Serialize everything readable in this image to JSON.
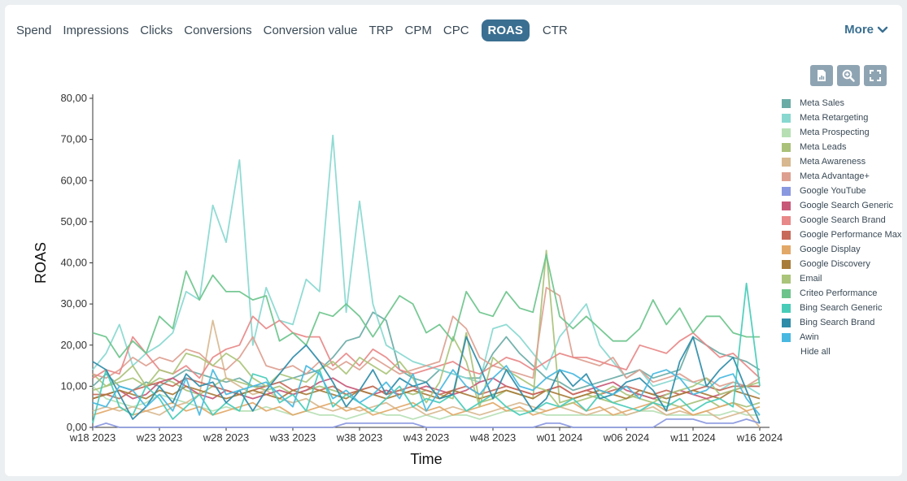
{
  "tabs": [
    {
      "label": "Spend",
      "active": false
    },
    {
      "label": "Impressions",
      "active": false
    },
    {
      "label": "Clicks",
      "active": false
    },
    {
      "label": "Conversions",
      "active": false
    },
    {
      "label": "Conversion value",
      "active": false
    },
    {
      "label": "TRP",
      "active": false
    },
    {
      "label": "CPM",
      "active": false
    },
    {
      "label": "CPC",
      "active": false
    },
    {
      "label": "ROAS",
      "active": true
    },
    {
      "label": "CTR",
      "active": false
    }
  ],
  "more_label": "More",
  "toolbar": {
    "icons": [
      "file-chart-icon",
      "zoom-icon",
      "fullscreen-icon"
    ]
  },
  "legend": {
    "hide_all_label": "Hide all"
  },
  "chart_data": {
    "type": "line",
    "xlabel": "Time",
    "ylabel": "ROAS",
    "ylim": [
      0,
      80
    ],
    "y_ticks": [
      "0,00",
      "10,00",
      "20,00",
      "30,00",
      "40,00",
      "50,00",
      "60,00",
      "70,00",
      "80,00"
    ],
    "x_tick_labels": [
      "w18 2023",
      "w23 2023",
      "w28 2023",
      "w33 2023",
      "w38 2023",
      "w43 2023",
      "w48 2023",
      "w01 2024",
      "w06 2024",
      "w11 2024",
      "w16 2024"
    ],
    "x_tick_positions": [
      0,
      5,
      10,
      15,
      20,
      25,
      30,
      35,
      40,
      45,
      50
    ],
    "legend_position": "right",
    "series": [
      {
        "name": "Meta Sales",
        "color": "#6aaba6",
        "values": [
          10,
          13,
          10,
          9,
          11,
          10,
          12,
          14,
          13,
          12,
          11,
          12,
          10,
          10,
          11,
          12,
          13,
          14,
          17,
          21,
          22,
          28,
          26,
          14,
          12,
          11,
          14,
          13,
          12,
          12,
          18,
          22,
          18,
          15,
          12,
          11,
          9,
          10,
          11,
          12,
          13,
          14,
          12,
          13,
          14,
          22,
          20,
          18,
          17,
          16,
          14
        ]
      },
      {
        "name": "Meta Retargeting",
        "color": "#88d8d0",
        "values": [
          14,
          18,
          25,
          15,
          18,
          20,
          23,
          33,
          31,
          54,
          45,
          65,
          20,
          34,
          26,
          25,
          36,
          33,
          71,
          28,
          55,
          30,
          20,
          18,
          16,
          15,
          14,
          13,
          12,
          11,
          24,
          25,
          22,
          18,
          14,
          22,
          26,
          30,
          20,
          16,
          12,
          14,
          10,
          11,
          12,
          11,
          10,
          9,
          11,
          10,
          8
        ]
      },
      {
        "name": "Meta Prospecting",
        "color": "#b6e0b4",
        "values": [
          10,
          7,
          6,
          5,
          6,
          8,
          7,
          6,
          5,
          4,
          5,
          4,
          4,
          5,
          4,
          3,
          4,
          3,
          3,
          2,
          3,
          4,
          3,
          3,
          2,
          3,
          2,
          3,
          3,
          2,
          3,
          4,
          4,
          4,
          3,
          3,
          3,
          3,
          3,
          3,
          3,
          4,
          4,
          3,
          3,
          3,
          3,
          3,
          4,
          3,
          3
        ]
      },
      {
        "name": "Meta Leads",
        "color": "#a9c178",
        "values": [
          13,
          10,
          12,
          15,
          10,
          12,
          11,
          9,
          8,
          10,
          12,
          11,
          10,
          9,
          10,
          8,
          9,
          10,
          9,
          8,
          9,
          10,
          8,
          9,
          8,
          9,
          8,
          7,
          23,
          6,
          7,
          9,
          8,
          7,
          43,
          6,
          7,
          8,
          7,
          6,
          7,
          8,
          7,
          6,
          5,
          6,
          7,
          5,
          6,
          5,
          6
        ]
      },
      {
        "name": "Meta Awareness",
        "color": "#d8b890",
        "values": [
          4,
          5,
          4,
          5,
          4,
          3,
          5,
          6,
          8,
          26,
          12,
          10,
          8,
          9,
          7,
          6,
          7,
          5,
          4,
          5,
          4,
          5,
          6,
          4,
          5,
          3,
          4,
          5,
          4,
          3,
          4,
          5,
          6,
          5,
          4,
          5,
          4,
          3,
          4,
          5,
          3,
          4,
          5,
          3,
          4,
          3,
          4,
          2,
          3,
          4,
          0
        ]
      },
      {
        "name": "Meta Advantage+",
        "color": "#dda090",
        "values": [
          13,
          12,
          14,
          17,
          15,
          17,
          16,
          19,
          18,
          15,
          14,
          17,
          22,
          15,
          14,
          15,
          13,
          16,
          14,
          16,
          14,
          17,
          15,
          13,
          14,
          15,
          16,
          27,
          24,
          17,
          15,
          14,
          13,
          12,
          34,
          32,
          17,
          16,
          15,
          17,
          12,
          14,
          11,
          12,
          13,
          11,
          12,
          10,
          11,
          10,
          12
        ]
      },
      {
        "name": "Google YouTube",
        "color": "#8a98e0",
        "values": [
          0,
          1,
          0,
          0,
          0,
          0,
          0,
          0,
          0,
          0,
          0,
          0,
          0,
          0,
          0,
          0,
          0,
          0,
          0,
          1,
          1,
          1,
          1,
          1,
          1,
          0,
          0,
          0,
          0,
          0,
          0,
          0,
          0,
          0,
          1,
          1,
          0,
          0,
          0,
          0,
          0,
          0,
          0,
          2,
          2,
          2,
          1,
          1,
          1,
          2,
          1
        ]
      },
      {
        "name": "Google Search Generic",
        "color": "#c85878",
        "values": [
          7,
          8,
          9,
          7,
          8,
          11,
          12,
          10,
          8,
          7,
          9,
          8,
          7,
          8,
          9,
          8,
          9,
          11,
          12,
          10,
          9,
          8,
          9,
          8,
          9,
          10,
          9,
          8,
          9,
          11,
          12,
          10,
          9,
          8,
          9,
          10,
          8,
          9,
          10,
          11,
          9,
          8,
          7,
          8,
          9,
          8,
          7,
          8,
          9,
          10,
          10
        ]
      },
      {
        "name": "Google Search Brand",
        "color": "#e88888",
        "values": [
          12,
          14,
          13,
          22,
          18,
          14,
          13,
          15,
          12,
          17,
          19,
          20,
          27,
          24,
          26,
          23,
          22,
          22,
          15,
          18,
          15,
          19,
          17,
          14,
          13,
          14,
          15,
          16,
          14,
          13,
          15,
          17,
          16,
          14,
          16,
          18,
          17,
          17,
          16,
          15,
          14,
          20,
          19,
          18,
          21,
          23,
          20,
          17,
          18,
          15,
          12
        ]
      },
      {
        "name": "Google Performance Max",
        "color": "#c86a5a",
        "values": [
          8,
          8,
          7,
          9,
          10,
          11,
          10,
          12,
          11,
          10,
          9,
          8,
          9,
          10,
          11,
          9,
          10,
          9,
          10,
          8,
          9,
          10,
          8,
          9,
          10,
          9,
          8,
          9,
          10,
          8,
          9,
          10,
          9,
          8,
          9,
          10,
          8,
          9,
          8,
          9,
          10,
          9,
          8,
          9,
          8,
          9,
          10,
          9,
          10,
          10,
          10
        ]
      },
      {
        "name": "Google Display",
        "color": "#e2a868",
        "values": [
          3,
          4,
          5,
          3,
          4,
          5,
          6,
          4,
          5,
          3,
          4,
          5,
          6,
          4,
          5,
          3,
          4,
          5,
          6,
          4,
          5,
          3,
          4,
          5,
          6,
          4,
          5,
          3,
          4,
          5,
          6,
          4,
          5,
          3,
          4,
          5,
          6,
          4,
          5,
          3,
          4,
          5,
          6,
          4,
          5,
          3,
          4,
          5,
          6,
          4,
          5
        ]
      },
      {
        "name": "Google Discovery",
        "color": "#a87c3a",
        "values": [
          7,
          8,
          9,
          8,
          7,
          9,
          8,
          10,
          9,
          8,
          7,
          8,
          9,
          8,
          7,
          9,
          8,
          9,
          8,
          7,
          9,
          8,
          7,
          8,
          9,
          8,
          7,
          9,
          8,
          7,
          8,
          9,
          8,
          7,
          9,
          8,
          7,
          8,
          9,
          8,
          7,
          9,
          8,
          7,
          8,
          9,
          8,
          7,
          9,
          8,
          7
        ]
      },
      {
        "name": "Email",
        "color": "#aac47a",
        "values": [
          9,
          10,
          11,
          12,
          10,
          14,
          13,
          18,
          17,
          15,
          18,
          16,
          12,
          10,
          13,
          12,
          11,
          14,
          16,
          13,
          17,
          15,
          13,
          16,
          12,
          6,
          11,
          22,
          16,
          5,
          17,
          14,
          12,
          10,
          9,
          5,
          6,
          7,
          8,
          10,
          8,
          7,
          6,
          8,
          9,
          10,
          12,
          8,
          9,
          10,
          11
        ]
      },
      {
        "name": "Criteo Performance",
        "color": "#6cc48c",
        "values": [
          23,
          22,
          17,
          21,
          18,
          27,
          24,
          38,
          31,
          37,
          33,
          33,
          31,
          32,
          21,
          23,
          20,
          28,
          27,
          30,
          27,
          22,
          27,
          32,
          30,
          23,
          25,
          21,
          33,
          28,
          27,
          33,
          29,
          28,
          42,
          27,
          24,
          27,
          24,
          21,
          21,
          24,
          31,
          25,
          29,
          23,
          27,
          27,
          23,
          22,
          22
        ]
      },
      {
        "name": "Bing Search Generic",
        "color": "#48ccb8",
        "values": [
          1,
          14,
          5,
          3,
          10,
          7,
          2,
          5,
          8,
          3,
          6,
          4,
          13,
          12,
          6,
          8,
          4,
          14,
          5,
          8,
          6,
          4,
          7,
          10,
          5,
          7,
          6,
          8,
          4,
          6,
          8,
          5,
          3,
          4,
          6,
          5,
          7,
          4,
          8,
          6,
          5,
          4,
          6,
          5,
          7,
          4,
          6,
          7,
          5,
          35,
          10
        ]
      },
      {
        "name": "Bing Search Brand",
        "color": "#2e8ca8",
        "values": [
          16,
          14,
          8,
          2,
          5,
          10,
          6,
          13,
          10,
          11,
          6,
          9,
          4,
          9,
          13,
          17,
          20,
          16,
          11,
          5,
          9,
          14,
          8,
          12,
          10,
          11,
          7,
          8,
          22,
          15,
          7,
          14,
          9,
          4,
          7,
          14,
          10,
          13,
          7,
          8,
          11,
          12,
          9,
          4,
          16,
          22,
          10,
          14,
          17,
          9,
          1
        ]
      },
      {
        "name": "Awin",
        "color": "#48b8e0",
        "values": [
          6,
          5,
          10,
          9,
          5,
          8,
          4,
          12,
          3,
          14,
          8,
          9,
          10,
          11,
          8,
          5,
          15,
          13,
          7,
          9,
          6,
          8,
          11,
          7,
          13,
          4,
          9,
          14,
          10,
          8,
          12,
          15,
          10,
          9,
          12,
          14,
          13,
          11,
          9,
          8,
          10,
          7,
          13,
          14,
          12,
          8,
          9,
          12,
          13,
          7,
          3
        ]
      }
    ]
  }
}
